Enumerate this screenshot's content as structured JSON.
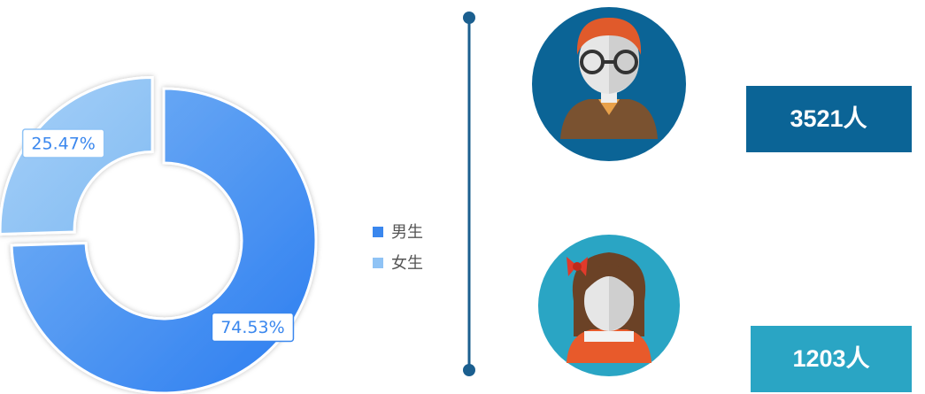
{
  "chart_data": {
    "type": "pie",
    "donut": true,
    "categories": [
      "男生",
      "女生"
    ],
    "values": [
      74.53,
      25.47
    ],
    "value_labels": [
      "74.53%",
      "25.47%"
    ],
    "colors": [
      "#3a87ee",
      "#8fc3f5"
    ],
    "legend": "right"
  },
  "cards": [
    {
      "count": "3521人"
    },
    {
      "count": "1203人"
    }
  ]
}
